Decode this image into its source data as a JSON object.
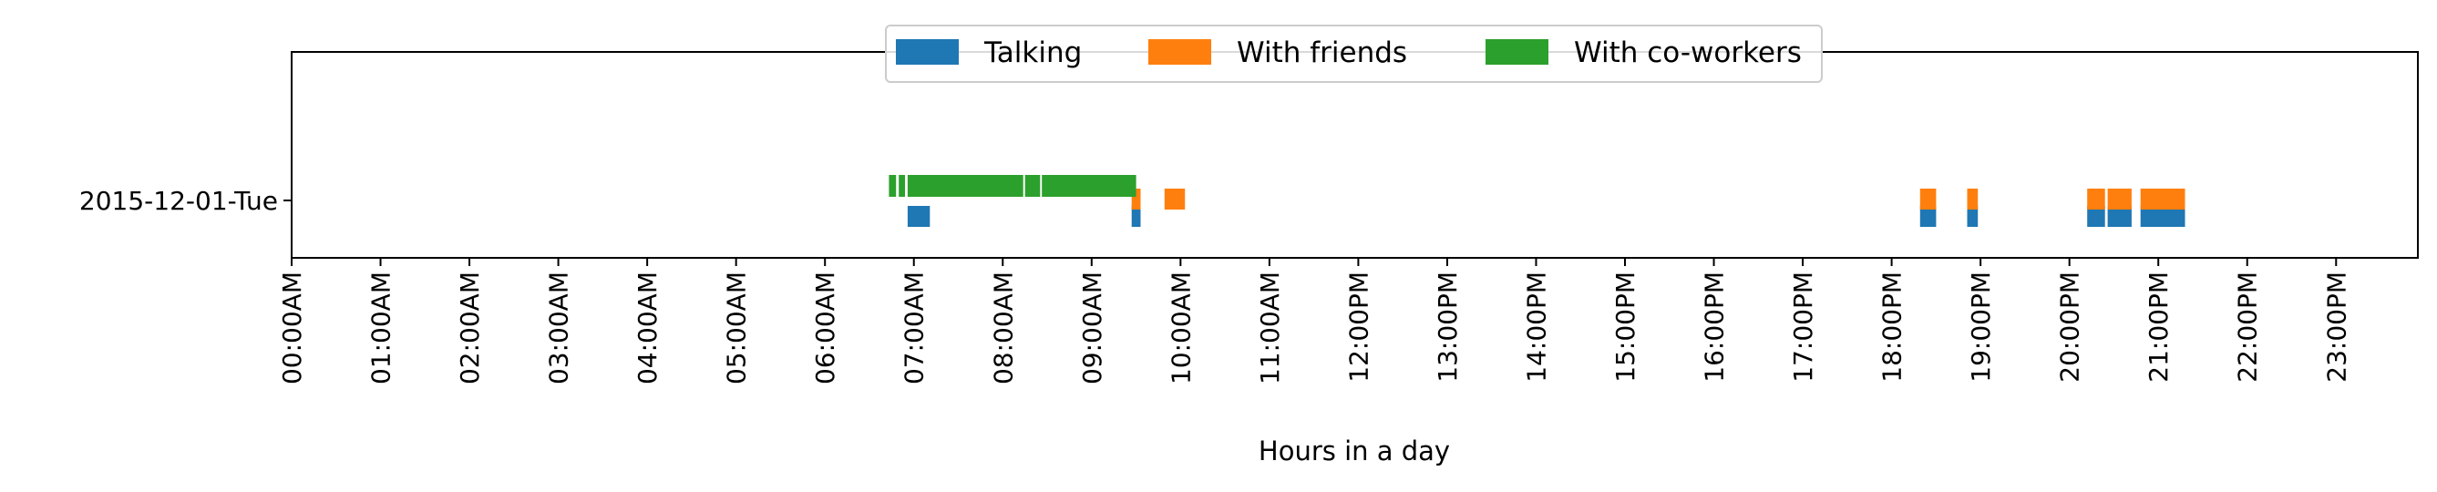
{
  "chart_data": {
    "type": "broken_barh",
    "title": "",
    "xlabel": "Hours in a day",
    "ylabel": "",
    "xlim": [
      0,
      24
    ],
    "grid": false,
    "legend_placement": "upper center",
    "y_categories": [
      "2015-12-01-Tue"
    ],
    "x_tick_labels": [
      "00:00AM",
      "01:00AM",
      "02:00AM",
      "03:00AM",
      "04:00AM",
      "05:00AM",
      "06:00AM",
      "07:00AM",
      "08:00AM",
      "09:00AM",
      "10:00AM",
      "11:00AM",
      "12:00PM",
      "13:00PM",
      "14:00PM",
      "15:00PM",
      "16:00PM",
      "17:00PM",
      "18:00PM",
      "19:00PM",
      "20:00PM",
      "21:00PM",
      "22:00PM",
      "23:00PM"
    ],
    "series": [
      {
        "name": "Talking",
        "color": "#1f77b4",
        "level": "lower",
        "segments": [
          [
            6.93,
            7.18
          ],
          [
            9.45,
            9.55
          ],
          [
            18.32,
            18.5
          ],
          [
            18.85,
            18.97
          ],
          [
            20.2,
            20.4
          ],
          [
            20.43,
            20.7
          ],
          [
            20.8,
            21.3
          ]
        ]
      },
      {
        "name": "With friends",
        "color": "#ff7f0e",
        "level": "middle",
        "segments": [
          [
            9.45,
            9.55
          ],
          [
            9.82,
            10.05
          ],
          [
            18.32,
            18.5
          ],
          [
            18.85,
            18.97
          ],
          [
            20.2,
            20.4
          ],
          [
            20.43,
            20.7
          ],
          [
            20.8,
            21.3
          ]
        ]
      },
      {
        "name": "With co-workers",
        "color": "#2ca02c",
        "level": "upper",
        "segments": [
          [
            6.72,
            6.8
          ],
          [
            6.83,
            6.9
          ],
          [
            6.93,
            8.23
          ],
          [
            8.25,
            8.42
          ],
          [
            8.44,
            9.5
          ]
        ]
      }
    ]
  }
}
